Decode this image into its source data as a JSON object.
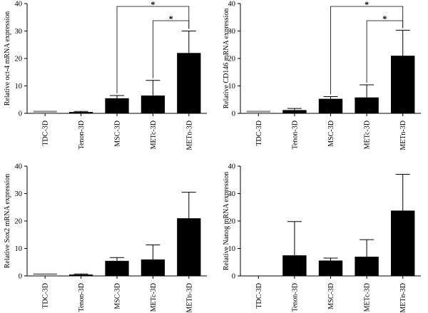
{
  "chart_data": [
    {
      "type": "bar",
      "ylabel": "Relative oct-4 mRNA expression",
      "ylim": [
        0,
        40
      ],
      "yticks": [
        0,
        10,
        20,
        30,
        40
      ],
      "categories": [
        "TDC-3D",
        "Tenon-3D",
        "MSC-3D",
        "METc-3D",
        "METn-3D"
      ],
      "values": [
        1,
        0.5,
        5.5,
        6.5,
        22
      ],
      "errors": [
        0,
        0.2,
        1,
        5.5,
        8
      ],
      "colors": [
        "#9e9e9e",
        "#000000",
        "#000000",
        "#000000",
        "#000000"
      ],
      "significance": [
        {
          "from": 2,
          "to": 4,
          "label": "*",
          "level": 1
        },
        {
          "from": 3,
          "to": 4,
          "label": "*",
          "level": 0
        }
      ]
    },
    {
      "type": "bar",
      "ylabel": "Relative CD146 mRNA expression",
      "ylim": [
        0,
        40
      ],
      "yticks": [
        0,
        10,
        20,
        30,
        40
      ],
      "categories": [
        "TDC-3D",
        "Tenon-3D",
        "MSC-3D",
        "METc-3D",
        "METn-3D"
      ],
      "values": [
        1,
        1.2,
        5.3,
        5.8,
        21
      ],
      "errors": [
        0,
        0.6,
        0.8,
        4.6,
        9.3
      ],
      "colors": [
        "#9e9e9e",
        "#000000",
        "#000000",
        "#000000",
        "#000000"
      ],
      "significance": [
        {
          "from": 2,
          "to": 4,
          "label": "*",
          "level": 1
        },
        {
          "from": 3,
          "to": 4,
          "label": "*",
          "level": 0
        }
      ]
    },
    {
      "type": "bar",
      "ylabel": "Relative Sox2 mRNA expression",
      "ylim": [
        0,
        40
      ],
      "yticks": [
        0,
        10,
        20,
        30,
        40
      ],
      "categories": [
        "TDC-3D",
        "Tenon-3D",
        "MSC-3D",
        "METc-3D",
        "METn-3D"
      ],
      "values": [
        1,
        0.5,
        5.5,
        6,
        21
      ],
      "errors": [
        0,
        0.2,
        1.2,
        5.3,
        9.5
      ],
      "colors": [
        "#9e9e9e",
        "#000000",
        "#000000",
        "#000000",
        "#000000"
      ],
      "significance": []
    },
    {
      "type": "bar",
      "ylabel": "Relative Nanog mRNA expression",
      "ylim": [
        0,
        40
      ],
      "yticks": [
        0,
        10,
        20,
        30,
        40
      ],
      "categories": [
        "TDC-3D",
        "Tenon-3D",
        "MSC-3D",
        "METc-3D",
        "METn-3D"
      ],
      "values": [
        0,
        7.5,
        5.6,
        7,
        23.8
      ],
      "errors": [
        0,
        12.3,
        0.9,
        6.2,
        13.2
      ],
      "colors": [
        "#9e9e9e",
        "#000000",
        "#000000",
        "#000000",
        "#000000"
      ],
      "significance": []
    }
  ]
}
